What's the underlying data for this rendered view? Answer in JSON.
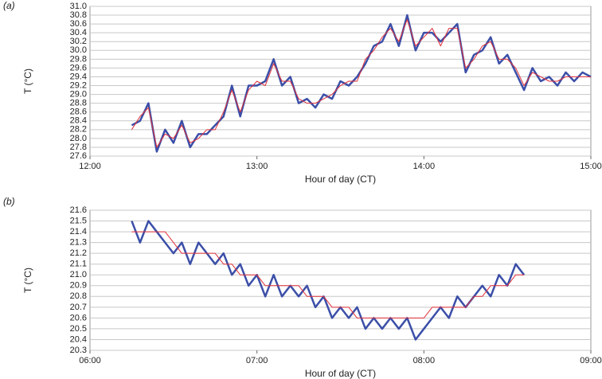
{
  "chart_data": [
    {
      "type": "line",
      "label": "(a)",
      "x_label": "Hour of day (CT)",
      "y_label": "T (°C)",
      "grid": true,
      "xlim": [
        12,
        15
      ],
      "xticks": [
        {
          "value": 12,
          "label": "12:00"
        },
        {
          "value": 13,
          "label": "13:00"
        },
        {
          "value": 14,
          "label": "14:00"
        },
        {
          "value": 15,
          "label": "15:00"
        }
      ],
      "ylim": [
        27.6,
        31.0
      ],
      "yticks": [
        27.6,
        27.8,
        {
          "value": 28,
          "label": "28.0"
        },
        28.2,
        28.4,
        28.6,
        28.8,
        {
          "value": 29,
          "label": "29.0"
        },
        29.2,
        29.4,
        29.6,
        29.8,
        {
          "value": 30,
          "label": "30.0"
        },
        30.2,
        30.4,
        30.6,
        30.8,
        {
          "value": 31,
          "label": "31.0"
        }
      ],
      "x": [
        12.25,
        12.3,
        12.35,
        12.4,
        12.45,
        12.5,
        12.55,
        12.6,
        12.65,
        12.7,
        12.75,
        12.8,
        12.85,
        12.9,
        12.95,
        13.0,
        13.05,
        13.1,
        13.15,
        13.2,
        13.25,
        13.3,
        13.35,
        13.4,
        13.45,
        13.5,
        13.55,
        13.6,
        13.65,
        13.7,
        13.75,
        13.8,
        13.85,
        13.9,
        13.95,
        14.0,
        14.05,
        14.1,
        14.15,
        14.2,
        14.25,
        14.3,
        14.35,
        14.4,
        14.45,
        14.5,
        14.55,
        14.6,
        14.65,
        14.7,
        14.75,
        14.8,
        14.85,
        14.9,
        14.95,
        15.0
      ],
      "series": [
        {
          "color": "#3b4fa8",
          "width": 2.5,
          "values": [
            28.3,
            28.4,
            28.8,
            27.7,
            28.2,
            27.9,
            28.4,
            27.8,
            28.1,
            28.1,
            28.3,
            28.5,
            29.2,
            28.5,
            29.2,
            29.2,
            29.3,
            29.8,
            29.2,
            29.4,
            28.8,
            28.9,
            28.7,
            29.0,
            28.9,
            29.3,
            29.2,
            29.4,
            29.7,
            30.1,
            30.2,
            30.6,
            30.1,
            30.8,
            30.0,
            30.4,
            30.4,
            30.2,
            30.4,
            30.6,
            29.5,
            29.9,
            30.0,
            30.3,
            29.7,
            29.9,
            29.5,
            29.1,
            29.6,
            29.3,
            29.4,
            29.2,
            29.5,
            29.3,
            29.5,
            29.4
          ]
        },
        {
          "color": "#e0303a",
          "width": 1,
          "values": [
            28.2,
            28.5,
            28.7,
            27.8,
            28.1,
            28.0,
            28.3,
            27.9,
            28.0,
            28.2,
            28.2,
            28.6,
            29.1,
            28.6,
            29.1,
            29.3,
            29.2,
            29.7,
            29.3,
            29.3,
            28.9,
            28.8,
            28.8,
            28.9,
            29.0,
            29.2,
            29.3,
            29.3,
            29.8,
            30.0,
            30.3,
            30.5,
            30.2,
            30.7,
            30.1,
            30.3,
            30.5,
            30.1,
            30.5,
            30.5,
            29.6,
            29.8,
            30.1,
            30.2,
            29.8,
            29.8,
            29.6,
            29.2,
            29.5,
            29.4,
            29.3,
            29.3,
            29.4,
            29.4,
            29.4,
            29.4
          ]
        }
      ]
    },
    {
      "type": "line",
      "label": "(b)",
      "x_label": "Hour of day (CT)",
      "y_label": "T (°C)",
      "grid": true,
      "xlim": [
        6,
        9
      ],
      "xticks": [
        {
          "value": 6,
          "label": "06:00"
        },
        {
          "value": 7,
          "label": "07:00"
        },
        {
          "value": 8,
          "label": "08:00"
        },
        {
          "value": 9,
          "label": "09:00"
        }
      ],
      "ylim": [
        20.3,
        21.6
      ],
      "yticks": [
        20.3,
        20.4,
        20.5,
        20.6,
        20.7,
        20.8,
        20.9,
        {
          "value": 21,
          "label": "21.0"
        },
        21.1,
        21.2,
        21.3,
        21.4,
        21.5,
        21.6
      ],
      "x": [
        6.25,
        6.3,
        6.35,
        6.4,
        6.45,
        6.5,
        6.55,
        6.6,
        6.65,
        6.7,
        6.75,
        6.8,
        6.85,
        6.9,
        6.95,
        7.0,
        7.05,
        7.1,
        7.15,
        7.2,
        7.25,
        7.3,
        7.35,
        7.4,
        7.45,
        7.5,
        7.55,
        7.6,
        7.65,
        7.7,
        7.75,
        7.8,
        7.85,
        7.9,
        7.95,
        8.0,
        8.05,
        8.1,
        8.15,
        8.2,
        8.25,
        8.3,
        8.35,
        8.4,
        8.45,
        8.5,
        8.55,
        8.6
      ],
      "series": [
        {
          "color": "#3b4fa8",
          "width": 2.5,
          "values": [
            21.5,
            21.3,
            21.5,
            21.4,
            21.3,
            21.2,
            21.3,
            21.1,
            21.3,
            21.2,
            21.1,
            21.2,
            21.0,
            21.1,
            20.9,
            21.0,
            20.8,
            21.0,
            20.8,
            20.9,
            20.8,
            20.9,
            20.7,
            20.8,
            20.6,
            20.7,
            20.6,
            20.7,
            20.5,
            20.6,
            20.5,
            20.6,
            20.5,
            20.6,
            20.4,
            20.5,
            20.6,
            20.7,
            20.6,
            20.8,
            20.7,
            20.8,
            20.9,
            20.8,
            21.0,
            20.9,
            21.1,
            21.0
          ]
        },
        {
          "color": "#e0303a",
          "width": 1,
          "values": [
            21.4,
            21.4,
            21.4,
            21.4,
            21.4,
            21.3,
            21.2,
            21.2,
            21.2,
            21.2,
            21.2,
            21.1,
            21.1,
            21.0,
            21.0,
            21.0,
            20.9,
            20.9,
            20.9,
            20.9,
            20.9,
            20.8,
            20.8,
            20.8,
            20.7,
            20.7,
            20.7,
            20.6,
            20.6,
            20.6,
            20.6,
            20.6,
            20.6,
            20.6,
            20.6,
            20.6,
            20.7,
            20.7,
            20.7,
            20.7,
            20.7,
            20.8,
            20.8,
            20.9,
            20.9,
            20.9,
            21.0,
            21.0
          ]
        }
      ]
    }
  ]
}
